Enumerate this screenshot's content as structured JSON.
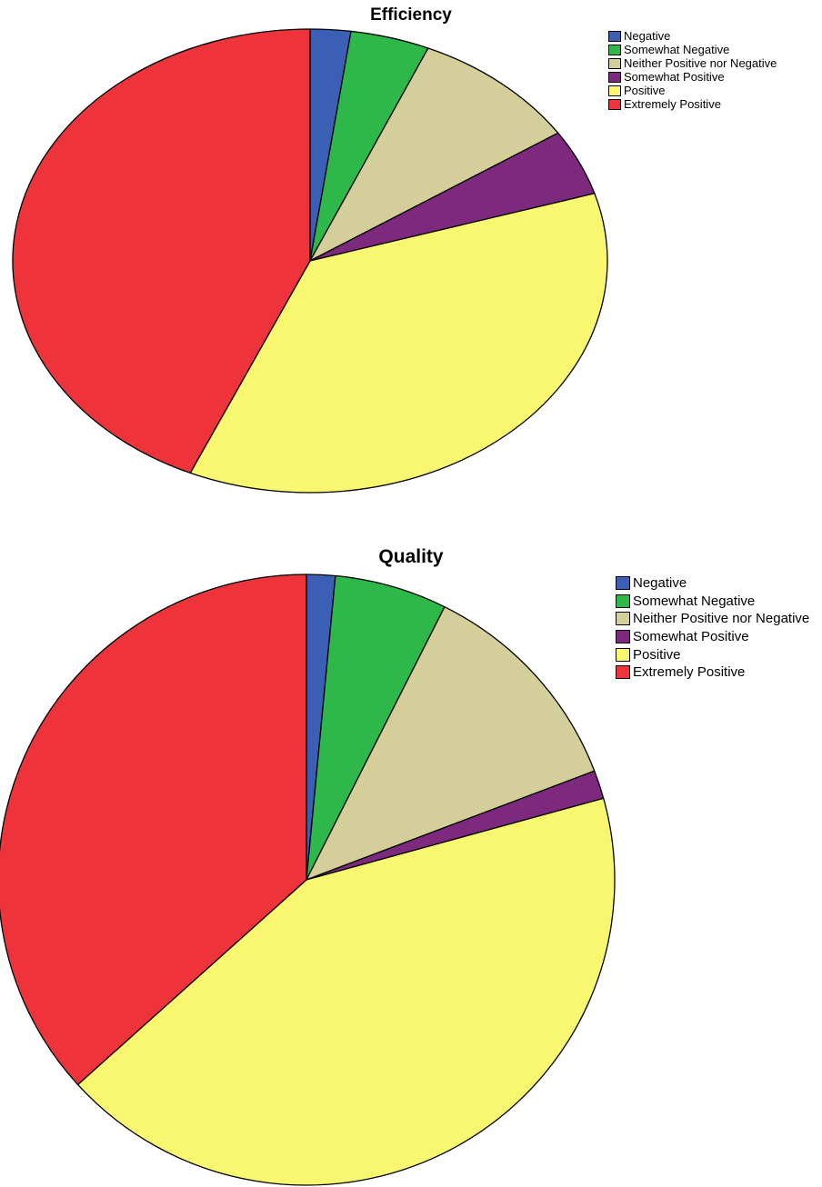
{
  "chart_data": [
    {
      "type": "pie",
      "title": "Efficiency",
      "legend_position": "top-right",
      "start_angle": "12 o'clock",
      "direction": "clockwise",
      "slices": [
        {
          "label": "Negative",
          "value": 2.2,
          "color": "#3a5fb5"
        },
        {
          "label": "Somewhat Negative",
          "value": 4.3,
          "color": "#2eb84a"
        },
        {
          "label": "Neither Positive nor Negative",
          "value": 9.2,
          "color": "#d4cf9a"
        },
        {
          "label": "Somewhat Positive",
          "value": 4.6,
          "color": "#7d2a7e"
        },
        {
          "label": "Positive",
          "value": 36.3,
          "color": "#f9f770"
        },
        {
          "label": "Extremely Positive",
          "value": 43.4,
          "color": "#ef333a"
        }
      ]
    },
    {
      "type": "pie",
      "title": "Quality",
      "legend_position": "top-right",
      "start_angle": "12 o'clock",
      "direction": "clockwise",
      "slices": [
        {
          "label": "Negative",
          "value": 1.5,
          "color": "#3a5fb5"
        },
        {
          "label": "Somewhat Negative",
          "value": 5.9,
          "color": "#2eb84a"
        },
        {
          "label": "Neither Positive nor Negative",
          "value": 11.8,
          "color": "#d4cf9a"
        },
        {
          "label": "Somewhat Positive",
          "value": 1.5,
          "color": "#7d2a7e"
        },
        {
          "label": "Positive",
          "value": 42.6,
          "color": "#f9f770"
        },
        {
          "label": "Extremely Positive",
          "value": 36.7,
          "color": "#ef333a"
        }
      ]
    }
  ]
}
